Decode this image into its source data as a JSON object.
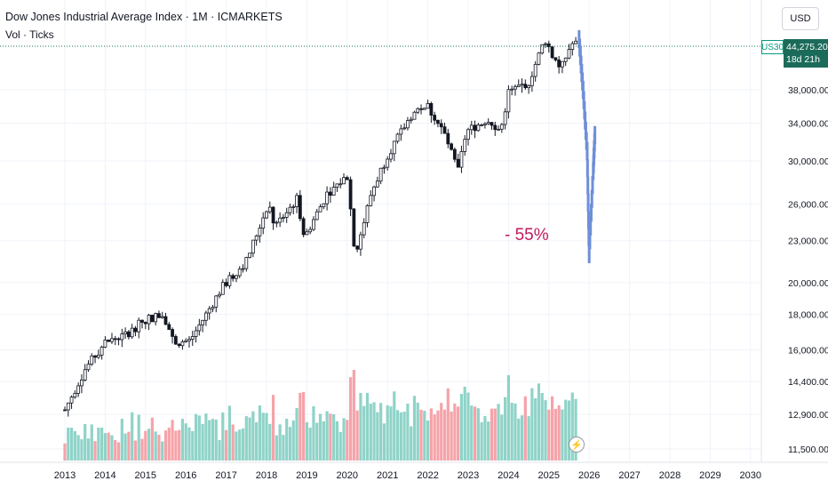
{
  "header": {
    "title": "Dow Jones Industrial Average Index · 1M · ICMARKETS",
    "indicator": "Vol · Ticks"
  },
  "currency_label": "USD",
  "symbol_badge": "US30",
  "last_price": "44,275.20",
  "countdown": "18d 21h",
  "annotation": "- 55%",
  "bolt_icon": "lightning-icon",
  "colors": {
    "up": "#089981",
    "down": "#f23645",
    "vol_up": "#8fd3c8",
    "vol_down": "#f5a3a9",
    "projection": "#6e8fd8",
    "annotation": "#c2185b",
    "price_line": "#1b6b5a"
  },
  "chart_data": {
    "type": "candlestick",
    "log_scale": true,
    "x_axis": {
      "labels": [
        "2013",
        "2014",
        "2015",
        "2016",
        "2017",
        "2018",
        "2019",
        "2020",
        "2021",
        "2022",
        "2023",
        "2024",
        "2025",
        "2026",
        "2027",
        "2028",
        "2029",
        "2030"
      ],
      "range": [
        2012.85,
        2030.3
      ]
    },
    "y_axis": {
      "ticks": [
        11500,
        12900,
        14400,
        16000,
        18000,
        20000,
        23000,
        26000,
        30000,
        34000,
        38000
      ],
      "tick_labels": [
        "11,500.00",
        "12,900.00",
        "14,400.00",
        "16,000.00",
        "18,000.00",
        "20,000.00",
        "23,000.00",
        "26,000.00",
        "30,000.00",
        "34,000.00",
        "38,000.00"
      ],
      "range": [
        11000,
        50000
      ]
    },
    "grid": true,
    "current_price": 44275.2,
    "closes_yearly": [
      {
        "t": 2013.0,
        "v": 13100
      },
      {
        "t": 2013.5,
        "v": 15000
      },
      {
        "t": 2014.0,
        "v": 16400
      },
      {
        "t": 2014.5,
        "v": 16800
      },
      {
        "t": 2015.0,
        "v": 17700
      },
      {
        "t": 2015.45,
        "v": 18000
      },
      {
        "t": 2015.7,
        "v": 16400
      },
      {
        "t": 2016.1,
        "v": 16500
      },
      {
        "t": 2016.5,
        "v": 18000
      },
      {
        "t": 2016.9,
        "v": 19700
      },
      {
        "t": 2017.5,
        "v": 21500
      },
      {
        "t": 2018.05,
        "v": 26100
      },
      {
        "t": 2018.2,
        "v": 24100
      },
      {
        "t": 2018.75,
        "v": 26400
      },
      {
        "t": 2018.95,
        "v": 23300
      },
      {
        "t": 2019.5,
        "v": 26900
      },
      {
        "t": 2020.0,
        "v": 28500
      },
      {
        "t": 2020.2,
        "v": 21900
      },
      {
        "t": 2020.6,
        "v": 27000
      },
      {
        "t": 2021.0,
        "v": 30600
      },
      {
        "t": 2021.6,
        "v": 35000
      },
      {
        "t": 2021.95,
        "v": 36300
      },
      {
        "t": 2022.4,
        "v": 32900
      },
      {
        "t": 2022.75,
        "v": 29000
      },
      {
        "t": 2022.95,
        "v": 33100
      },
      {
        "t": 2023.5,
        "v": 34500
      },
      {
        "t": 2023.8,
        "v": 33100
      },
      {
        "t": 2024.0,
        "v": 37700
      },
      {
        "t": 2024.5,
        "v": 39000
      },
      {
        "t": 2024.9,
        "v": 45000
      },
      {
        "t": 2025.15,
        "v": 42000
      },
      {
        "t": 2025.3,
        "v": 40700
      },
      {
        "t": 2025.55,
        "v": 44300
      },
      {
        "t": 2025.7,
        "v": 44275
      }
    ],
    "projection": [
      {
        "t": 2025.75,
        "v": 45000
      },
      {
        "t": 2025.85,
        "v": 38000
      },
      {
        "t": 2025.95,
        "v": 31000
      },
      {
        "t": 2026.0,
        "v": 22000
      },
      {
        "t": 2026.1,
        "v": 29000
      },
      {
        "t": 2026.15,
        "v": 33500
      }
    ],
    "volume_scale": "relative",
    "annotations": [
      "- 55%"
    ]
  }
}
